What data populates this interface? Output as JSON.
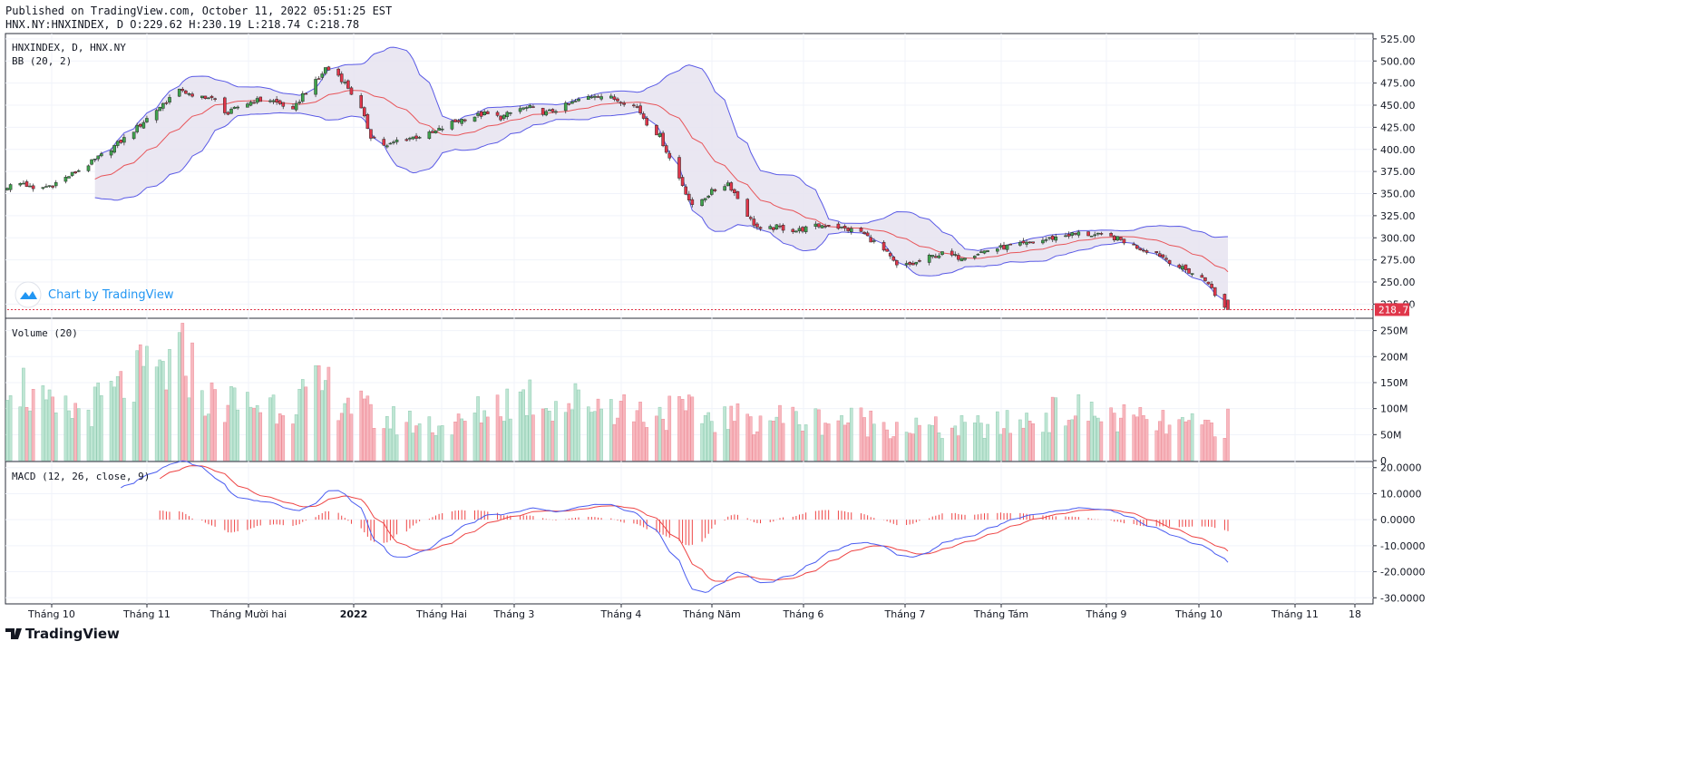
{
  "header": {
    "published": "Published on TradingView.com, October 11, 2022 05:51:25 EST",
    "ohlc": "HNX.NY:HNXINDEX, D O:229.62 H:230.19 L:218.74 C:218.78"
  },
  "price_pane": {
    "symbol_label": "HNXINDEX, D, HNX.NY",
    "indicator_label": "BB (20, 2)",
    "watermark": "Chart by TradingView",
    "last_price": "218.78",
    "axis_ticks": [
      "525.00",
      "500.00",
      "475.00",
      "450.00",
      "425.00",
      "400.00",
      "375.00",
      "350.00",
      "325.00",
      "300.00",
      "275.00",
      "250.00",
      "225.00"
    ]
  },
  "volume_pane": {
    "label": "Volume (20)",
    "axis_ticks": [
      "250M",
      "200M",
      "150M",
      "100M",
      "50M",
      "0"
    ]
  },
  "macd_pane": {
    "label": "MACD (12, 26, close, 9)",
    "axis_ticks": [
      "20.0000",
      "10.0000",
      "0.0000",
      "-10.0000",
      "-20.0000",
      "-30.0000"
    ]
  },
  "time_axis": [
    "Tháng 10",
    "Tháng 11",
    "Tháng Mười hai",
    "2022",
    "Tháng Hai",
    "Tháng 3",
    "Tháng 4",
    "Tháng Năm",
    "Tháng 6",
    "Tháng 7",
    "Tháng Tám",
    "Tháng 9",
    "Tháng 10",
    "Tháng 11",
    "18"
  ],
  "footer": {
    "brand": "TradingView"
  },
  "colors": {
    "up": "#26a69a",
    "up_candle": "#1b8a3e",
    "down": "#e0364a",
    "bb_band": "#5a5ae6",
    "bb_mid": "#e8555a",
    "bb_fill": "#e6e3f0",
    "macd": "#4a5cf0",
    "signal": "#ee4444"
  },
  "chart_data": [
    {
      "type": "candlestick",
      "pane": "price",
      "ylim": [
        210,
        530
      ],
      "overlay": "Bollinger Bands (20, 2)",
      "close_anchors": [
        [
          "2021-09-30",
          358
        ],
        [
          "2021-10-05",
          362
        ],
        [
          "2021-10-08",
          354
        ],
        [
          "2021-10-14",
          360
        ],
        [
          "2021-10-20",
          372
        ],
        [
          "2021-10-25",
          383
        ],
        [
          "2021-10-29",
          393
        ],
        [
          "2021-11-05",
          412
        ],
        [
          "2021-11-10",
          428
        ],
        [
          "2021-11-15",
          445
        ],
        [
          "2021-11-19",
          458
        ],
        [
          "2021-11-23",
          468
        ],
        [
          "2021-11-26",
          458
        ],
        [
          "2021-11-30",
          460
        ],
        [
          "2021-12-03",
          455
        ],
        [
          "2021-12-07",
          440
        ],
        [
          "2021-12-10",
          448
        ],
        [
          "2021-12-15",
          455
        ],
        [
          "2021-12-20",
          456
        ],
        [
          "2021-12-24",
          450
        ],
        [
          "2021-12-27",
          443
        ],
        [
          "2021-12-30",
          462
        ],
        [
          "2022-01-04",
          480
        ],
        [
          "2022-01-06",
          492
        ],
        [
          "2022-01-10",
          484
        ],
        [
          "2022-01-13",
          470
        ],
        [
          "2022-01-17",
          445
        ],
        [
          "2022-01-20",
          415
        ],
        [
          "2022-01-25",
          403
        ],
        [
          "2022-01-28",
          410
        ],
        [
          "2022-02-08",
          418
        ],
        [
          "2022-02-14",
          430
        ],
        [
          "2022-02-18",
          435
        ],
        [
          "2022-02-24",
          440
        ],
        [
          "2022-03-01",
          436
        ],
        [
          "2022-03-07",
          446
        ],
        [
          "2022-03-10",
          447
        ],
        [
          "2022-03-15",
          441
        ],
        [
          "2022-03-18",
          445
        ],
        [
          "2022-03-24",
          454
        ],
        [
          "2022-03-30",
          462
        ],
        [
          "2022-04-04",
          458
        ],
        [
          "2022-04-07",
          455
        ],
        [
          "2022-04-12",
          448
        ],
        [
          "2022-04-15",
          430
        ],
        [
          "2022-04-19",
          415
        ],
        [
          "2022-04-22",
          390
        ],
        [
          "2022-04-26",
          360
        ],
        [
          "2022-04-29",
          335
        ],
        [
          "2022-05-05",
          352
        ],
        [
          "2022-05-10",
          362
        ],
        [
          "2022-05-13",
          345
        ],
        [
          "2022-05-17",
          320
        ],
        [
          "2022-05-20",
          308
        ],
        [
          "2022-05-25",
          312
        ],
        [
          "2022-05-31",
          308
        ],
        [
          "2022-06-06",
          313
        ],
        [
          "2022-06-10",
          315
        ],
        [
          "2022-06-15",
          310
        ],
        [
          "2022-06-20",
          307
        ],
        [
          "2022-06-24",
          295
        ],
        [
          "2022-06-28",
          282
        ],
        [
          "2022-07-01",
          268
        ],
        [
          "2022-07-06",
          270
        ],
        [
          "2022-07-11",
          278
        ],
        [
          "2022-07-15",
          282
        ],
        [
          "2022-07-20",
          278
        ],
        [
          "2022-07-25",
          282
        ],
        [
          "2022-07-29",
          286
        ],
        [
          "2022-08-04",
          290
        ],
        [
          "2022-08-10",
          293
        ],
        [
          "2022-08-16",
          298
        ],
        [
          "2022-08-22",
          303
        ],
        [
          "2022-08-26",
          305
        ],
        [
          "2022-08-31",
          303
        ],
        [
          "2022-09-06",
          300
        ],
        [
          "2022-09-09",
          296
        ],
        [
          "2022-09-14",
          288
        ],
        [
          "2022-09-19",
          283
        ],
        [
          "2022-09-22",
          276
        ],
        [
          "2022-09-27",
          265
        ],
        [
          "2022-09-30",
          260
        ],
        [
          "2022-10-05",
          250
        ],
        [
          "2022-10-07",
          234
        ],
        [
          "2022-10-11",
          218.78
        ]
      ],
      "last": {
        "date": "2022-10-11",
        "open": 229.62,
        "high": 230.19,
        "low": 218.74,
        "close": 218.78
      }
    },
    {
      "type": "bar",
      "pane": "volume",
      "ylim": [
        0,
        265
      ],
      "unit": "M",
      "volume_anchors": [
        [
          "2021-09-30",
          180
        ],
        [
          "2021-10-08",
          120
        ],
        [
          "2021-10-15",
          90
        ],
        [
          "2021-10-25",
          100
        ],
        [
          "2021-11-01",
          125
        ],
        [
          "2021-11-10",
          160
        ],
        [
          "2021-11-19",
          175
        ],
        [
          "2021-11-24",
          200
        ],
        [
          "2021-12-01",
          115
        ],
        [
          "2021-12-10",
          110
        ],
        [
          "2021-12-20",
          110
        ],
        [
          "2021-12-30",
          120
        ],
        [
          "2022-01-06",
          140
        ],
        [
          "2022-01-14",
          115
        ],
        [
          "2022-01-21",
          80
        ],
        [
          "2022-02-08",
          70
        ],
        [
          "2022-02-15",
          65
        ],
        [
          "2022-02-24",
          100
        ],
        [
          "2022-03-03",
          115
        ],
        [
          "2022-03-10",
          125
        ],
        [
          "2022-03-18",
          110
        ],
        [
          "2022-03-28",
          115
        ],
        [
          "2022-04-05",
          110
        ],
        [
          "2022-04-15",
          90
        ],
        [
          "2022-04-22",
          95
        ],
        [
          "2022-05-05",
          85
        ],
        [
          "2022-05-13",
          80
        ],
        [
          "2022-05-24",
          85
        ],
        [
          "2022-06-03",
          78
        ],
        [
          "2022-06-14",
          80
        ],
        [
          "2022-06-24",
          75
        ],
        [
          "2022-07-04",
          65
        ],
        [
          "2022-07-15",
          60
        ],
        [
          "2022-07-27",
          65
        ],
        [
          "2022-08-05",
          70
        ],
        [
          "2022-08-15",
          85
        ],
        [
          "2022-08-23",
          95
        ],
        [
          "2022-08-31",
          90
        ],
        [
          "2022-09-09",
          80
        ],
        [
          "2022-09-20",
          70
        ],
        [
          "2022-09-30",
          65
        ],
        [
          "2022-10-11",
          72
        ]
      ]
    },
    {
      "type": "line",
      "pane": "macd",
      "ylim": [
        -32,
        22
      ],
      "series": [
        {
          "name": "MACD"
        },
        {
          "name": "Signal"
        },
        {
          "name": "Histogram"
        }
      ]
    }
  ]
}
